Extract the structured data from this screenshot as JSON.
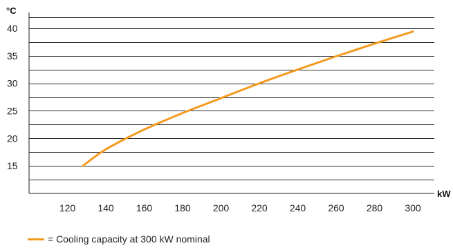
{
  "chart_data": {
    "type": "line",
    "xlabel": "kW",
    "ylabel": "°C",
    "xlim": [
      100,
      300
    ],
    "ylim": [
      10,
      42
    ],
    "x_ticks": [
      120,
      140,
      160,
      180,
      200,
      220,
      240,
      260,
      280,
      300
    ],
    "y_ticks": [
      15,
      20,
      25,
      30,
      35,
      40
    ],
    "y_gridlines": [
      12.5,
      15,
      17.5,
      20,
      22.5,
      25,
      27.5,
      30,
      32.5,
      35,
      37.5,
      40,
      42
    ],
    "grid": "horizontal",
    "legend_position": "bottom-left",
    "series": [
      {
        "name": "= Cooling capacity at 300 kW nominal",
        "color": "#f39a1f",
        "x": [
          128,
          140,
          160,
          180,
          200,
          220,
          240,
          260,
          280,
          300
        ],
        "y": [
          15.0,
          18.0,
          21.6,
          24.6,
          27.3,
          30.0,
          32.5,
          34.9,
          37.2,
          39.4
        ]
      }
    ]
  }
}
